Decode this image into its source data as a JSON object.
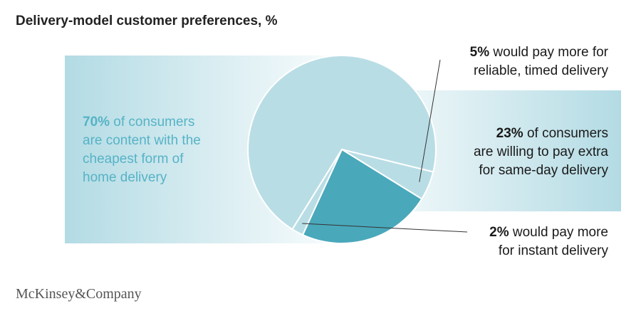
{
  "title": "Delivery-model customer preferences, %",
  "brand": "McKinsey&Company",
  "colors": {
    "light_slice": "#b9dde5",
    "highlight_slice": "#4aa8bb",
    "band": "#cde9ef",
    "left_text": "#56b3c6",
    "leader": "#333333"
  },
  "chart_data": {
    "type": "pie",
    "title": "Delivery-model customer preferences, %",
    "slices": [
      {
        "value": 70,
        "pct_label": "70%",
        "text": "of consumers are content with the cheapest form of home delivery",
        "color": "#b9dde5"
      },
      {
        "value": 5,
        "pct_label": "5%",
        "text": "would pay more for reliable, timed delivery",
        "color": "#b9dde5"
      },
      {
        "value": 23,
        "pct_label": "23%",
        "text": "of consumers are willing to pay extra for same-day delivery",
        "color": "#4aa8bb"
      },
      {
        "value": 2,
        "pct_label": "2%",
        "text": "would pay more for instant delivery",
        "color": "#b9dde5"
      }
    ]
  },
  "labels": {
    "s70": {
      "pct": "70%",
      "line1": " of consumers",
      "line2": "are content with the",
      "line3": "cheapest form of",
      "line4": "home delivery"
    },
    "s5": {
      "pct": "5%",
      "line1": " would pay more for",
      "line2": "reliable, timed delivery"
    },
    "s23": {
      "pct": "23%",
      "line1": " of consumers",
      "line2": "are willing to pay extra",
      "line3": "for same-day delivery"
    },
    "s2": {
      "pct": "2%",
      "line1": " would pay more",
      "line2": "for instant delivery"
    }
  }
}
